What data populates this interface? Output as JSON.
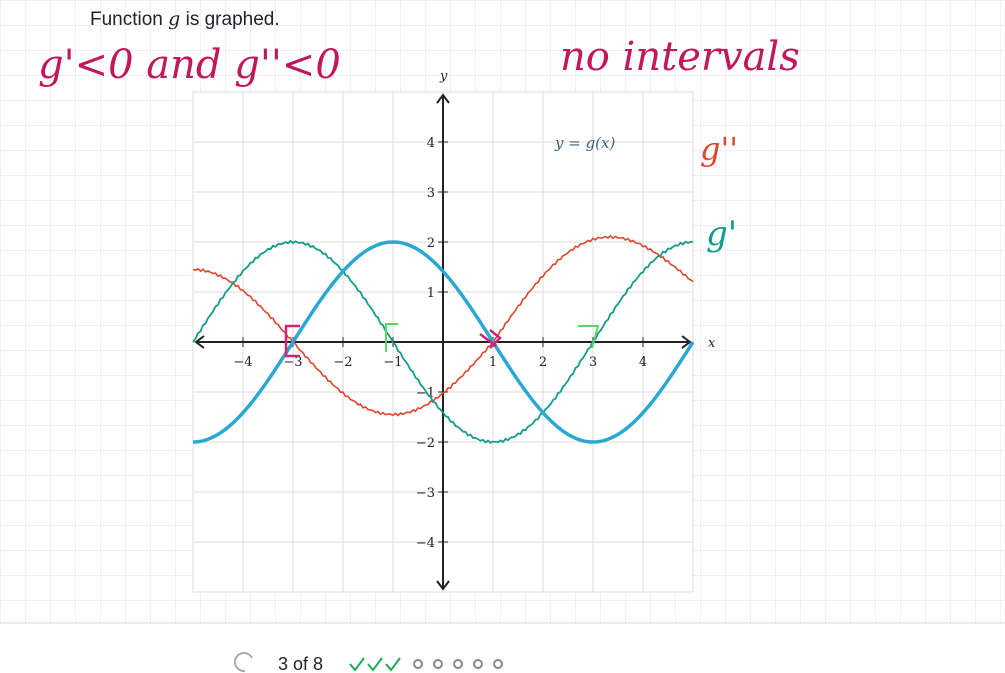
{
  "prompt": {
    "before": "Function",
    "variable": "g",
    "after": "is graphed."
  },
  "annotations": {
    "note_left": "g'<0 and g''<0",
    "note_right": "no intervals",
    "second_derivative": "g''",
    "first_derivative": "g'"
  },
  "graph": {
    "x_axis_label": "x",
    "y_axis_label": "y",
    "x_tick_labels": [
      "−4",
      "−3",
      "−2",
      "−1",
      "1",
      "2",
      "3",
      "4"
    ],
    "y_tick_labels": [
      "4",
      "3",
      "2",
      "1",
      "−1",
      "−2",
      "−3",
      "−4"
    ],
    "curve_label": "y = g(x)"
  },
  "footer": {
    "progress": "3 of 8"
  }
}
